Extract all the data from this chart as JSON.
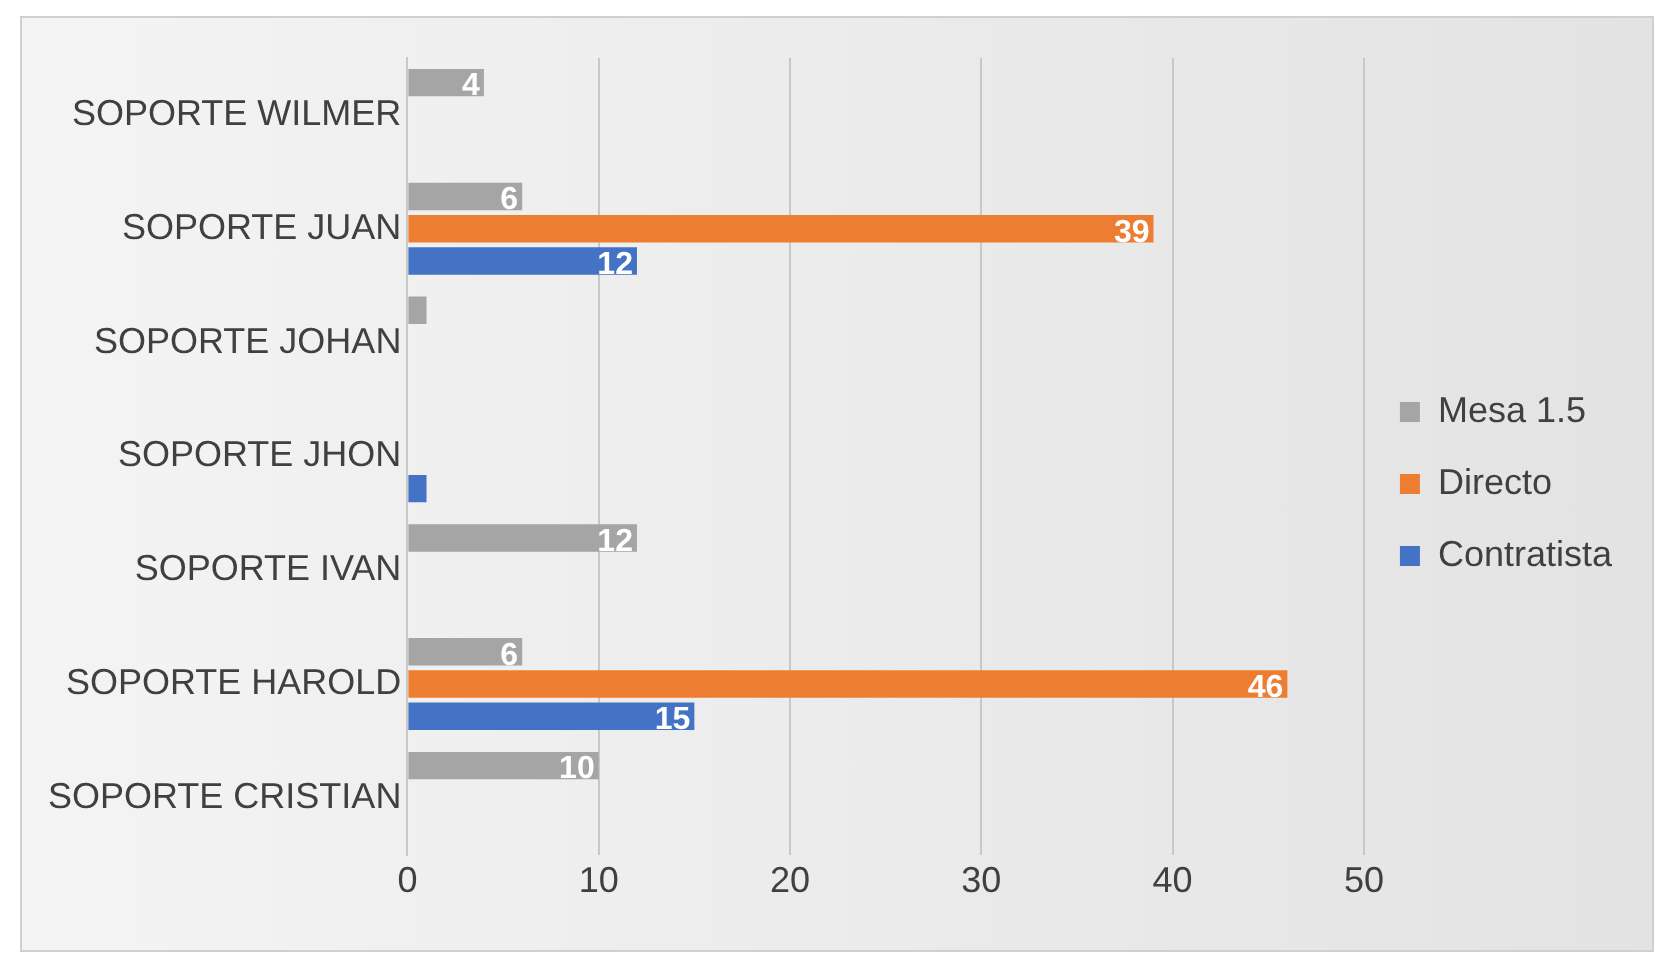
{
  "chart_data": {
    "type": "bar",
    "orientation": "horizontal",
    "categories": [
      "SOPORTE WILMER",
      "SOPORTE JUAN",
      "SOPORTE JOHAN",
      "SOPORTE JHON",
      "SOPORTE IVAN",
      "SOPORTE HAROLD",
      "SOPORTE CRISTIAN"
    ],
    "series": [
      {
        "name": "Mesa 1.5",
        "color": "#a5a5a5",
        "values": [
          4,
          6,
          1,
          null,
          12,
          6,
          10
        ],
        "value_labels": [
          "4",
          "6",
          null,
          null,
          "12",
          "6",
          "10"
        ]
      },
      {
        "name": "Directo",
        "color": "#ed7d31",
        "values": [
          null,
          39,
          null,
          null,
          null,
          46,
          null
        ],
        "value_labels": [
          null,
          "39",
          null,
          null,
          null,
          "46",
          null
        ]
      },
      {
        "name": "Contratista",
        "color": "#4472c4",
        "values": [
          null,
          12,
          null,
          1,
          null,
          15,
          null
        ],
        "value_labels": [
          null,
          "12",
          null,
          null,
          null,
          "15",
          null
        ]
      }
    ],
    "xlim": [
      0,
      50
    ],
    "xticks": [
      0,
      10,
      20,
      30,
      40,
      50
    ],
    "grid": "x",
    "legend": "right"
  }
}
